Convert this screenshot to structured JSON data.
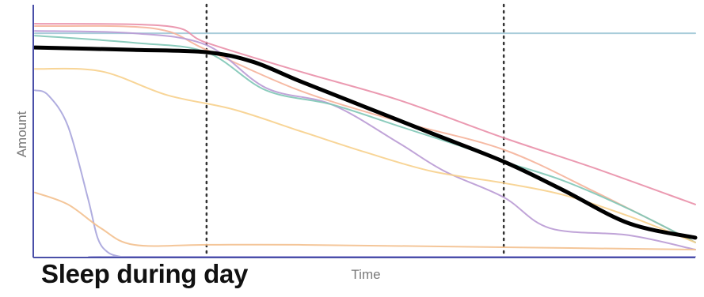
{
  "caption": "Sleep during day",
  "chart_data": {
    "type": "line",
    "title": "",
    "xlabel": "Time",
    "ylabel": "Amount",
    "xlim": [
      0,
      100
    ],
    "ylim": [
      0,
      100
    ],
    "grid": false,
    "vlines": [
      26,
      71
    ],
    "series": [
      {
        "color": "#000000",
        "emphasis": true,
        "x": [
          0,
          15,
          26,
          33,
          40,
          50,
          60,
          71,
          80,
          90,
          100
        ],
        "y": [
          88,
          87,
          86,
          82,
          74,
          63,
          52,
          40,
          28,
          14,
          8
        ]
      },
      {
        "color": "#9fc6d6",
        "x": [
          0,
          100
        ],
        "y": [
          94,
          94
        ]
      },
      {
        "color": "#e98fa8",
        "x": [
          0,
          20,
          26,
          40,
          55,
          71,
          85,
          100
        ],
        "y": [
          98,
          97,
          90,
          78,
          66,
          50,
          37,
          22
        ]
      },
      {
        "color": "#f5b29a",
        "x": [
          0,
          18,
          26,
          40,
          55,
          71,
          85,
          100
        ],
        "y": [
          97,
          96,
          87,
          70,
          57,
          45,
          27,
          6
        ]
      },
      {
        "color": "#b99ad4",
        "x": [
          0,
          15,
          26,
          35,
          45,
          55,
          62,
          71,
          78,
          90,
          100
        ],
        "y": [
          95,
          94,
          89,
          71,
          64,
          48,
          36,
          25,
          12,
          9,
          3
        ]
      },
      {
        "color": "#7fc7b6",
        "x": [
          0,
          15,
          26,
          35,
          45,
          55,
          65,
          71,
          80,
          90,
          100
        ],
        "y": [
          93,
          90,
          86,
          70,
          64,
          55,
          46,
          40,
          32,
          20,
          6
        ]
      },
      {
        "color": "#f7d08c",
        "x": [
          0,
          10,
          20,
          30,
          40,
          50,
          60,
          71,
          80,
          90,
          100
        ],
        "y": [
          79,
          78,
          68,
          62,
          53,
          44,
          36,
          31,
          26,
          17,
          6
        ]
      },
      {
        "color": "#a7a4dc",
        "x": [
          0,
          2,
          5,
          8,
          9.5,
          11,
          13,
          15,
          100
        ],
        "y": [
          70,
          68,
          55,
          25,
          8,
          2,
          0,
          0,
          0
        ]
      },
      {
        "color": "#f3c08e",
        "x": [
          0,
          5,
          10,
          15,
          26,
          40,
          71,
          100
        ],
        "y": [
          27,
          22,
          12,
          5,
          5,
          5,
          4,
          3
        ]
      }
    ]
  }
}
